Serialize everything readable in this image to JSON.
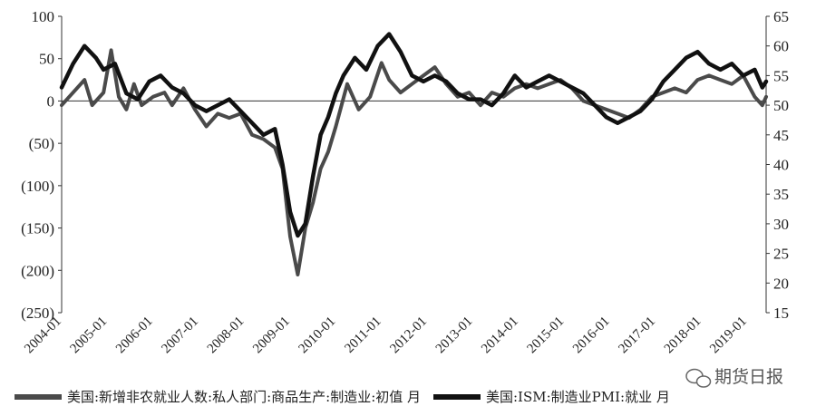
{
  "chart_data": {
    "type": "line",
    "y_left": {
      "lim": [
        -250,
        100
      ],
      "ticks": [
        100,
        50,
        0,
        -50,
        -100,
        -150,
        -200,
        -250
      ],
      "tick_labels": [
        "100",
        "50",
        "0",
        "(50)",
        "(100)",
        "(150)",
        "(200)",
        "(250)"
      ]
    },
    "y_right": {
      "lim": [
        15,
        65
      ],
      "ticks": [
        65,
        60,
        55,
        50,
        45,
        40,
        35,
        30,
        25,
        20,
        15
      ],
      "tick_labels": [
        "65",
        "60",
        "55",
        "50",
        "45",
        "40",
        "35",
        "30",
        "25",
        "20",
        "15"
      ]
    },
    "x_range": [
      "2004-01",
      "2019-06"
    ],
    "x_tick_labels": [
      "2004-01",
      "2005-01",
      "2006-01",
      "2007-01",
      "2008-01",
      "2009-01",
      "2010-01",
      "2011-01",
      "2012-01",
      "2013-01",
      "2014-01",
      "2015-01",
      "2016-01",
      "2017-01",
      "2018-01",
      "2019-01"
    ],
    "legend_position": "bottom",
    "series": [
      {
        "name": "美国:新增非农就业人数:私人部门:商品生产:制造业:初值 月",
        "axis": "left",
        "color": "#4a4a4a",
        "points": [
          [
            "2004-01",
            -5
          ],
          [
            "2004-05",
            15
          ],
          [
            "2004-07",
            25
          ],
          [
            "2004-09",
            -5
          ],
          [
            "2004-12",
            10
          ],
          [
            "2005-02",
            60
          ],
          [
            "2005-04",
            5
          ],
          [
            "2005-06",
            -10
          ],
          [
            "2005-08",
            20
          ],
          [
            "2005-10",
            -5
          ],
          [
            "2006-01",
            5
          ],
          [
            "2006-04",
            10
          ],
          [
            "2006-06",
            -5
          ],
          [
            "2006-09",
            15
          ],
          [
            "2006-12",
            -10
          ],
          [
            "2007-03",
            -30
          ],
          [
            "2007-06",
            -15
          ],
          [
            "2007-09",
            -20
          ],
          [
            "2007-12",
            -15
          ],
          [
            "2008-03",
            -40
          ],
          [
            "2008-06",
            -45
          ],
          [
            "2008-09",
            -55
          ],
          [
            "2008-11",
            -80
          ],
          [
            "2009-01",
            -160
          ],
          [
            "2009-03",
            -205
          ],
          [
            "2009-05",
            -150
          ],
          [
            "2009-07",
            -120
          ],
          [
            "2009-09",
            -80
          ],
          [
            "2009-11",
            -60
          ],
          [
            "2010-01",
            -30
          ],
          [
            "2010-04",
            20
          ],
          [
            "2010-07",
            -10
          ],
          [
            "2010-10",
            5
          ],
          [
            "2011-01",
            45
          ],
          [
            "2011-03",
            25
          ],
          [
            "2011-06",
            10
          ],
          [
            "2011-09",
            20
          ],
          [
            "2011-12",
            30
          ],
          [
            "2012-03",
            40
          ],
          [
            "2012-06",
            20
          ],
          [
            "2012-09",
            5
          ],
          [
            "2012-12",
            10
          ],
          [
            "2013-03",
            -5
          ],
          [
            "2013-06",
            10
          ],
          [
            "2013-09",
            5
          ],
          [
            "2013-12",
            15
          ],
          [
            "2014-03",
            20
          ],
          [
            "2014-06",
            15
          ],
          [
            "2014-09",
            20
          ],
          [
            "2014-12",
            25
          ],
          [
            "2015-03",
            15
          ],
          [
            "2015-06",
            0
          ],
          [
            "2015-09",
            -5
          ],
          [
            "2015-12",
            -10
          ],
          [
            "2016-03",
            -15
          ],
          [
            "2016-06",
            -20
          ],
          [
            "2016-09",
            -10
          ],
          [
            "2016-12",
            5
          ],
          [
            "2017-03",
            10
          ],
          [
            "2017-06",
            15
          ],
          [
            "2017-09",
            10
          ],
          [
            "2017-12",
            25
          ],
          [
            "2018-03",
            30
          ],
          [
            "2018-06",
            25
          ],
          [
            "2018-09",
            20
          ],
          [
            "2018-12",
            30
          ],
          [
            "2019-03",
            5
          ],
          [
            "2019-05",
            -5
          ],
          [
            "2019-06",
            5
          ]
        ]
      },
      {
        "name": "美国:ISM:制造业PMI:就业 月",
        "axis": "right",
        "color": "#111111",
        "points": [
          [
            "2004-01",
            53
          ],
          [
            "2004-04",
            57
          ],
          [
            "2004-07",
            60
          ],
          [
            "2004-10",
            58
          ],
          [
            "2004-12",
            56
          ],
          [
            "2005-03",
            57
          ],
          [
            "2005-06",
            52
          ],
          [
            "2005-09",
            51
          ],
          [
            "2005-12",
            54
          ],
          [
            "2006-03",
            55
          ],
          [
            "2006-06",
            53
          ],
          [
            "2006-09",
            52
          ],
          [
            "2006-12",
            50
          ],
          [
            "2007-03",
            49
          ],
          [
            "2007-06",
            50
          ],
          [
            "2007-09",
            51
          ],
          [
            "2007-12",
            49
          ],
          [
            "2008-03",
            47
          ],
          [
            "2008-06",
            45
          ],
          [
            "2008-09",
            46
          ],
          [
            "2008-11",
            40
          ],
          [
            "2009-01",
            32
          ],
          [
            "2009-03",
            28
          ],
          [
            "2009-05",
            30
          ],
          [
            "2009-07",
            38
          ],
          [
            "2009-09",
            45
          ],
          [
            "2009-11",
            48
          ],
          [
            "2010-01",
            52
          ],
          [
            "2010-03",
            55
          ],
          [
            "2010-06",
            58
          ],
          [
            "2010-09",
            56
          ],
          [
            "2010-12",
            60
          ],
          [
            "2011-03",
            62
          ],
          [
            "2011-06",
            59
          ],
          [
            "2011-09",
            55
          ],
          [
            "2011-12",
            54
          ],
          [
            "2012-03",
            55
          ],
          [
            "2012-06",
            54
          ],
          [
            "2012-09",
            52
          ],
          [
            "2012-12",
            51
          ],
          [
            "2013-03",
            51
          ],
          [
            "2013-06",
            50
          ],
          [
            "2013-09",
            52
          ],
          [
            "2013-12",
            55
          ],
          [
            "2014-03",
            53
          ],
          [
            "2014-06",
            54
          ],
          [
            "2014-09",
            55
          ],
          [
            "2014-12",
            54
          ],
          [
            "2015-03",
            53
          ],
          [
            "2015-06",
            52
          ],
          [
            "2015-09",
            50
          ],
          [
            "2015-12",
            48
          ],
          [
            "2016-03",
            47
          ],
          [
            "2016-06",
            48
          ],
          [
            "2016-09",
            49
          ],
          [
            "2016-12",
            51
          ],
          [
            "2017-03",
            54
          ],
          [
            "2017-06",
            56
          ],
          [
            "2017-09",
            58
          ],
          [
            "2017-12",
            59
          ],
          [
            "2018-03",
            57
          ],
          [
            "2018-06",
            56
          ],
          [
            "2018-09",
            57
          ],
          [
            "2018-12",
            55
          ],
          [
            "2019-03",
            56
          ],
          [
            "2019-05",
            53
          ],
          [
            "2019-06",
            54
          ]
        ]
      }
    ]
  },
  "watermark": {
    "text": "期货日报",
    "icon": "wechat-icon"
  }
}
